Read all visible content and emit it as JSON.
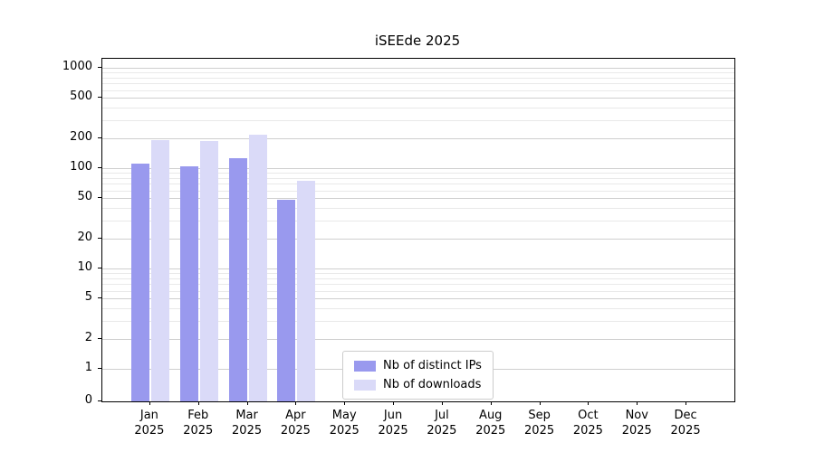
{
  "chart_data": {
    "type": "bar",
    "title": "iSEEde 2025",
    "year_label": "2025",
    "categories": [
      "Jan",
      "Feb",
      "Mar",
      "Apr",
      "May",
      "Jun",
      "Jul",
      "Aug",
      "Sep",
      "Oct",
      "Nov",
      "Dec"
    ],
    "yticks": [
      0,
      1,
      2,
      5,
      10,
      20,
      50,
      100,
      200,
      500,
      1000
    ],
    "yscale": "symlog",
    "ylim": [
      0,
      1200
    ],
    "grid": true,
    "legend_position": "lower-center",
    "series": [
      {
        "name": "Nb of distinct IPs",
        "color": "#9999ee",
        "values": [
          110,
          105,
          125,
          48,
          0,
          0,
          0,
          0,
          0,
          0,
          0,
          0
        ]
      },
      {
        "name": "Nb of downloads",
        "color": "#dadaf8",
        "values": [
          190,
          185,
          215,
          75,
          0,
          0,
          0,
          0,
          0,
          0,
          0,
          0
        ]
      }
    ]
  }
}
